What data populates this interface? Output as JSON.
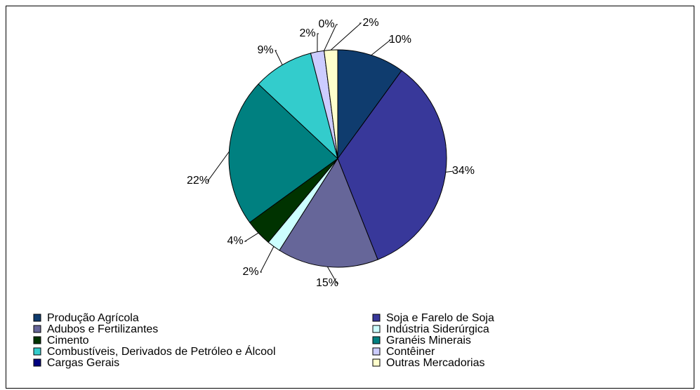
{
  "chart_data": {
    "type": "pie",
    "categories": [
      "Produção Agrícola",
      "Soja e Farelo de Soja",
      "Adubos e Fertilizantes",
      "Indústria Siderúrgica",
      "Cimento",
      "Granéis Minerais",
      "Combustíveis, Derivados de Petróleo e Álcool",
      "Contêiner",
      "Cargas Gerais",
      "Outras Mercadorias"
    ],
    "values": [
      10,
      34,
      15,
      2,
      4,
      22,
      9,
      2,
      0,
      2
    ],
    "value_labels": [
      "10%",
      "34%",
      "15%",
      "2%",
      "4%",
      "22%",
      "9%",
      "2%",
      "0%",
      "2%"
    ],
    "colors": [
      "#0f3c6e",
      "#38389a",
      "#666699",
      "#ccffff",
      "#003300",
      "#008080",
      "#33cccc",
      "#ccccff",
      "#000080",
      "#ffffcc"
    ],
    "legend": "bottom"
  }
}
